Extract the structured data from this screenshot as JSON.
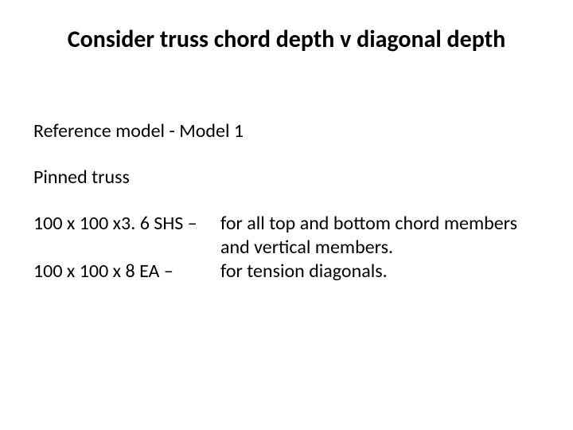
{
  "slide": {
    "title": "Consider truss chord depth v diagonal depth",
    "reference_line": "Reference model - Model 1",
    "truss_type": "Pinned truss",
    "specs": [
      {
        "label": "100 x 100 x3. 6 SHS –",
        "desc": "for all top and bottom chord members and vertical members."
      },
      {
        "label": "100 x 100 x 8 EA –",
        "desc": "for tension diagonals."
      }
    ]
  },
  "style": {
    "background_color": "#ffffff",
    "text_color": "#000000",
    "title_fontsize_pt": 30,
    "title_fontweight": 700,
    "body_fontsize_pt": 24,
    "font_family": "Calibri"
  }
}
